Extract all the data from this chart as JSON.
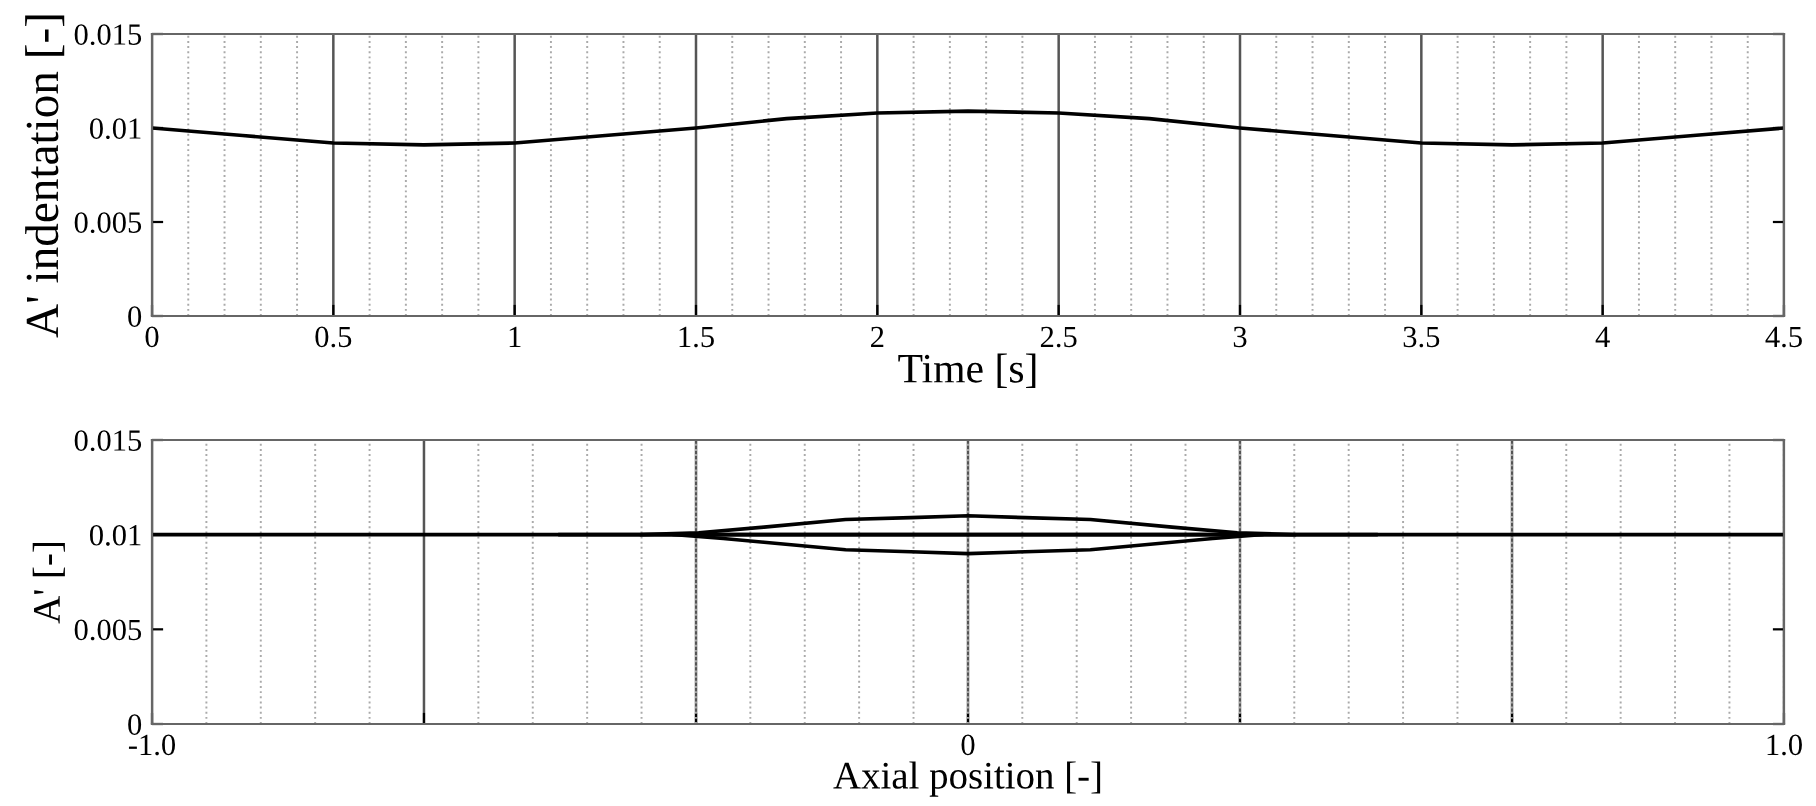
{
  "chart_data": [
    {
      "type": "line",
      "xlabel": "Time [s]",
      "ylabel": "A' indentation [-]",
      "xlim": [
        0,
        4.5
      ],
      "ylim": [
        0,
        0.015
      ],
      "xticks": [
        0,
        0.5,
        1,
        1.5,
        2,
        2.5,
        3,
        3.5,
        4,
        4.5
      ],
      "yticks": [
        0,
        0.005,
        0.01,
        0.015
      ],
      "grid": "x",
      "legend": false,
      "marker": "none",
      "line_style": "solid",
      "series": [
        {
          "color": "#000000",
          "x": [
            0,
            0.25,
            0.5,
            0.75,
            1,
            1.25,
            1.5,
            1.75,
            2,
            2.25,
            2.5,
            2.75,
            3,
            3.25,
            3.5,
            3.75,
            4,
            4.25,
            4.5
          ],
          "values": [
            0.01,
            0.0096,
            0.0092,
            0.0091,
            0.0092,
            0.0096,
            0.01,
            0.0105,
            0.0108,
            0.0109,
            0.0108,
            0.0105,
            0.01,
            0.0096,
            0.0092,
            0.0091,
            0.0092,
            0.0096,
            0.01
          ]
        }
      ]
    },
    {
      "type": "line",
      "xlabel": "Axial position [-]",
      "ylabel": "A' [-]",
      "xlim": [
        -1,
        1
      ],
      "ylim": [
        0,
        0.015
      ],
      "xticks": [
        {
          "value": -1,
          "label": "-1.0"
        },
        {
          "value": -0.6667,
          "label": null
        },
        {
          "value": -0.3333,
          "label": null
        },
        0,
        {
          "value": 0.3333,
          "label": null
        },
        {
          "value": 0.6667,
          "label": null
        },
        {
          "value": 1,
          "label": "1.0"
        }
      ],
      "yticks": [
        0,
        0.005,
        0.01,
        0.015
      ],
      "grid": "x",
      "legend": false,
      "marker": "none",
      "line_style": "solid",
      "series": [
        {
          "color": "#000000",
          "x": [
            -1,
            1
          ],
          "values": [
            0.01,
            0.01
          ]
        },
        {
          "color": "#000000",
          "x": [
            -0.5,
            0.5
          ],
          "values": [
            0.01,
            0.01
          ]
        },
        {
          "color": "#000000",
          "x": [
            -0.4,
            -0.33,
            -0.25,
            -0.15,
            -0.07,
            0,
            0.07,
            0.15,
            0.25,
            0.33,
            0.4
          ],
          "values": [
            0.01,
            0.0101,
            0.0104,
            0.0108,
            0.0109,
            0.011,
            0.0109,
            0.0108,
            0.0104,
            0.0101,
            0.01
          ]
        },
        {
          "color": "#000000",
          "x": [
            -0.36,
            -0.3,
            -0.25,
            -0.15,
            -0.07,
            0,
            0.07,
            0.15,
            0.25,
            0.3,
            0.36
          ],
          "values": [
            0.01,
            0.0098,
            0.0096,
            0.0092,
            0.0091,
            0.009,
            0.0091,
            0.0092,
            0.0096,
            0.0098,
            0.01
          ]
        }
      ]
    }
  ]
}
